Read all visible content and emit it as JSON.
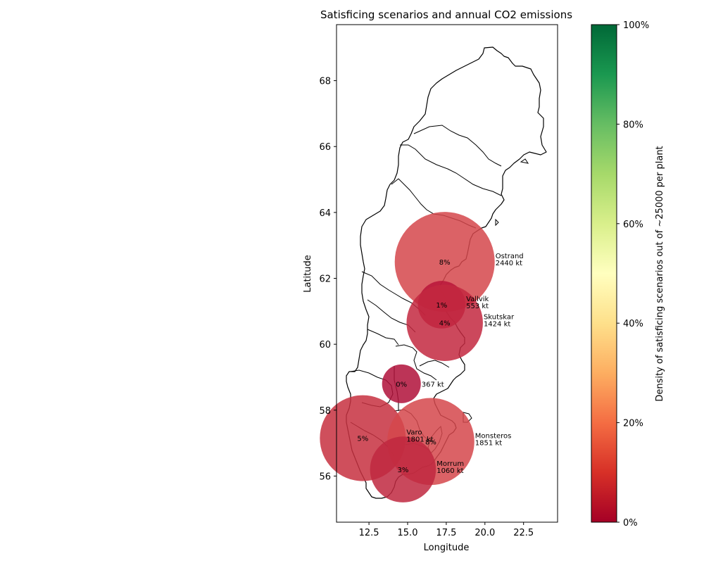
{
  "chart_data": {
    "type": "scatter",
    "title": "Satisficing scenarios and annual CO2 emissions",
    "xlabel": "Longitude",
    "ylabel": "Latitude",
    "xlim": [
      10.4,
      24.7
    ],
    "ylim": [
      54.6,
      69.7
    ],
    "x_ticks": [
      "12.5",
      "15.0",
      "17.5",
      "20.0",
      "22.5"
    ],
    "x_tick_values": [
      12.5,
      15.0,
      17.5,
      20.0,
      22.5
    ],
    "y_ticks": [
      "56",
      "58",
      "60",
      "62",
      "64",
      "66",
      "68"
    ],
    "y_tick_values": [
      56,
      58,
      60,
      62,
      64,
      66,
      68
    ],
    "size_unit": "kt",
    "points": [
      {
        "name": "Ostrand",
        "lon": 17.4,
        "lat": 62.5,
        "emissions_kt": 2440,
        "emissions_label": "2440 kt",
        "density_label": "8%",
        "density": 8,
        "color": "#d5474b"
      },
      {
        "name": "Vallvik",
        "lon": 17.2,
        "lat": 61.2,
        "emissions_kt": 553,
        "emissions_label": "553 kt",
        "density_label": "1%",
        "density": 1,
        "color": "#b8153a"
      },
      {
        "name": "Skutskar",
        "lon": 17.4,
        "lat": 60.65,
        "emissions_kt": 1424,
        "emissions_label": "1424 kt",
        "density_label": "4%",
        "density": 4,
        "color": "#c3283f"
      },
      {
        "name": "",
        "lon": 14.6,
        "lat": 58.8,
        "emissions_kt": 367,
        "emissions_label": "367 kt",
        "density_label": "0%",
        "density": 0,
        "color": "#b0103a"
      },
      {
        "name": "Varo",
        "lon": 12.1,
        "lat": 57.15,
        "emissions_kt": 1801,
        "emissions_label": "1801 kt",
        "density_label": "5%",
        "density": 5,
        "color": "#c7303f"
      },
      {
        "name": "Monsteros",
        "lon": 16.5,
        "lat": 57.05,
        "emissions_kt": 1851,
        "emissions_label": "1851 kt",
        "density_label": "8%",
        "density": 8,
        "color": "#d5474b"
      },
      {
        "name": "Morrum",
        "lon": 14.7,
        "lat": 56.2,
        "emissions_kt": 1060,
        "emissions_label": "1060 kt",
        "density_label": "3%",
        "density": 3,
        "color": "#c02840"
      }
    ],
    "colorbar": {
      "label": "Density of satisficing scenarios out of ~25000 per plant",
      "range": [
        0,
        100
      ],
      "ticks": [
        "0%",
        "20%",
        "40%",
        "60%",
        "80%",
        "100%"
      ],
      "tick_values": [
        0,
        20,
        40,
        60,
        80,
        100
      ],
      "colormap": "RdYlGn",
      "stops": [
        "#a50026",
        "#d73027",
        "#f46d43",
        "#fdae61",
        "#fee08b",
        "#ffffbf",
        "#d9ef8b",
        "#a6d96a",
        "#66bd63",
        "#1a9850",
        "#006837"
      ]
    },
    "grid": false,
    "legend": "none"
  }
}
